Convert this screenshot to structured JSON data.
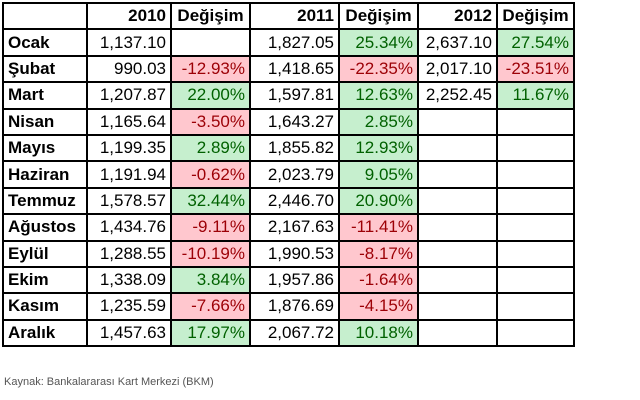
{
  "table": {
    "headers": [
      "",
      "2010",
      "Değişim",
      "2011",
      "Değişim",
      "2012",
      "Değişim"
    ],
    "rows": [
      {
        "month": "Ocak",
        "v2010": "1,137.10",
        "c2010": "",
        "v2011": "1,827.05",
        "c2011": "25.34%",
        "v2012": "2,637.10",
        "c2012": "27.54%"
      },
      {
        "month": "Şubat",
        "v2010": "990.03",
        "c2010": "-12.93%",
        "v2011": "1,418.65",
        "c2011": "-22.35%",
        "v2012": "2,017.10",
        "c2012": "-23.51%"
      },
      {
        "month": "Mart",
        "v2010": "1,207.87",
        "c2010": "22.00%",
        "v2011": "1,597.81",
        "c2011": "12.63%",
        "v2012": "2,252.45",
        "c2012": "11.67%"
      },
      {
        "month": "Nisan",
        "v2010": "1,165.64",
        "c2010": "-3.50%",
        "v2011": "1,643.27",
        "c2011": "2.85%",
        "v2012": "",
        "c2012": ""
      },
      {
        "month": "Mayıs",
        "v2010": "1,199.35",
        "c2010": "2.89%",
        "v2011": "1,855.82",
        "c2011": "12.93%",
        "v2012": "",
        "c2012": ""
      },
      {
        "month": "Haziran",
        "v2010": "1,191.94",
        "c2010": "-0.62%",
        "v2011": "2,023.79",
        "c2011": "9.05%",
        "v2012": "",
        "c2012": ""
      },
      {
        "month": "Temmuz",
        "v2010": "1,578.57",
        "c2010": "32.44%",
        "v2011": "2,446.70",
        "c2011": "20.90%",
        "v2012": "",
        "c2012": ""
      },
      {
        "month": "Ağustos",
        "v2010": "1,434.76",
        "c2010": "-9.11%",
        "v2011": "2,167.63",
        "c2011": "-11.41%",
        "v2012": "",
        "c2012": ""
      },
      {
        "month": "Eylül",
        "v2010": "1,288.55",
        "c2010": "-10.19%",
        "v2011": "1,990.53",
        "c2011": "-8.17%",
        "v2012": "",
        "c2012": ""
      },
      {
        "month": "Ekim",
        "v2010": "1,338.09",
        "c2010": "3.84%",
        "v2011": "1,957.86",
        "c2011": "-1.64%",
        "v2012": "",
        "c2012": ""
      },
      {
        "month": "Kasım",
        "v2010": "1,235.59",
        "c2010": "-7.66%",
        "v2011": "1,876.69",
        "c2011": "-4.15%",
        "v2012": "",
        "c2012": ""
      },
      {
        "month": "Aralık",
        "v2010": "1,457.63",
        "c2010": "17.97%",
        "v2011": "2,067.72",
        "c2011": "10.18%",
        "v2012": "",
        "c2012": ""
      }
    ]
  },
  "source": "Kaynak: Bankalararası Kart Merkezi (BKM)",
  "colors": {
    "positive_bg": "#c6efce",
    "positive_text": "#006100",
    "negative_bg": "#ffc7ce",
    "negative_text": "#9c0006"
  }
}
